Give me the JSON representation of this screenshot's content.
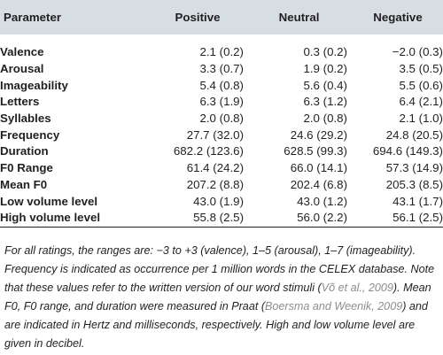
{
  "table": {
    "headers": [
      "Parameter",
      "Positive",
      "Neutral",
      "Negative"
    ],
    "rows": [
      {
        "label": "Valence",
        "positive": "2.1 (0.2)",
        "neutral": "0.3 (0.2)",
        "negative": "−2.0 (0.3)"
      },
      {
        "label": "Arousal",
        "positive": "3.3 (0.7)",
        "neutral": "1.9 (0.2)",
        "negative": "3.5 (0.5)"
      },
      {
        "label": "Imageability",
        "positive": "5.4 (0.8)",
        "neutral": "5.6 (0.4)",
        "negative": "5.5 (0.6)"
      },
      {
        "label": "Letters",
        "positive": "6.3 (1.9)",
        "neutral": "6.3 (1.2)",
        "negative": "6.4 (2.1)"
      },
      {
        "label": "Syllables",
        "positive": "2.0 (0.8)",
        "neutral": "2.0 (0.8)",
        "negative": "2.1 (1.0)"
      },
      {
        "label": "Frequency",
        "positive": "27.7 (32.0)",
        "neutral": "24.6 (29.2)",
        "negative": "24.8 (20.5)"
      },
      {
        "label": "Duration",
        "positive": "682.2 (123.6)",
        "neutral": "628.5 (99.3)",
        "negative": "694.6 (149.3)"
      },
      {
        "label": "F0 Range",
        "positive": "61.4 (24.2)",
        "neutral": "66.0 (14.1)",
        "negative": "57.3 (14.9)"
      },
      {
        "label": "Mean F0",
        "positive": "207.2 (8.8)",
        "neutral": "202.4 (6.8)",
        "negative": "205.3 (8.5)"
      },
      {
        "label": "Low volume level",
        "positive": "43.0 (1.9)",
        "neutral": "43.0 (1.2)",
        "negative": "43.1 (1.7)"
      },
      {
        "label": "High volume level",
        "positive": "55.8 (2.5)",
        "neutral": "56.0 (2.2)",
        "negative": "56.1 (2.5)"
      }
    ]
  },
  "note": {
    "part1": "For all ratings, the ranges are: −3 to +3 (valence), 1–5 (arousal), 1–7 (imageability). Frequency is indicated as occurrence per 1 million words in the CELEX database. Note that these values refer to the written version of our word stimuli (",
    "cite1": "Võ et al., 2009",
    "part2": "). Mean F0, F0 range, and duration were measured in Praat (",
    "cite2": "Boersma and Weenik, 2009",
    "part3": ") and are indicated in Hertz and milliseconds, respectively. High and low volume level are given in decibel."
  },
  "colors": {
    "header_bg": "#d6dde3",
    "text": "#231f20",
    "citation": "#8b8d8f"
  }
}
